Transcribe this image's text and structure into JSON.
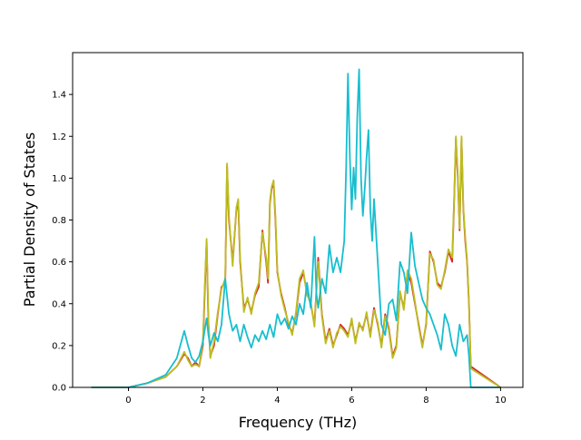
{
  "chart_data": {
    "type": "line",
    "title": "",
    "xlabel": "Frequency (THz)",
    "ylabel": "Partial Density of States",
    "xlim": [
      -1.5,
      10.6
    ],
    "ylim": [
      0.0,
      1.6
    ],
    "xticks": [
      0,
      2,
      4,
      6,
      8,
      10
    ],
    "yticks": [
      0.0,
      0.2,
      0.4,
      0.6,
      0.8,
      1.0,
      1.2,
      1.4
    ],
    "xtick_labels": [
      "0",
      "2",
      "4",
      "6",
      "8",
      "10"
    ],
    "ytick_labels": [
      "0.0",
      "0.2",
      "0.4",
      "0.6",
      "0.8",
      "1.0",
      "1.2",
      "1.4"
    ],
    "grid": false,
    "legend": "none",
    "series": [
      {
        "color": "#d62728",
        "x": [
          -1.0,
          0.0,
          0.5,
          1.0,
          1.3,
          1.5,
          1.6,
          1.7,
          1.8,
          1.9,
          2.0,
          2.05,
          2.1,
          2.15,
          2.2,
          2.3,
          2.4,
          2.5,
          2.6,
          2.65,
          2.7,
          2.8,
          2.9,
          2.95,
          3.0,
          3.1,
          3.2,
          3.3,
          3.4,
          3.5,
          3.6,
          3.7,
          3.75,
          3.8,
          3.85,
          3.9,
          3.95,
          4.0,
          4.1,
          4.2,
          4.3,
          4.4,
          4.5,
          4.6,
          4.7,
          4.8,
          4.9,
          5.0,
          5.1,
          5.2,
          5.3,
          5.4,
          5.5,
          5.6,
          5.7,
          5.8,
          5.9,
          6.0,
          6.1,
          6.2,
          6.3,
          6.4,
          6.5,
          6.6,
          6.7,
          6.8,
          6.9,
          7.0,
          7.1,
          7.2,
          7.3,
          7.4,
          7.5,
          7.6,
          7.7,
          7.8,
          7.9,
          8.0,
          8.1,
          8.2,
          8.3,
          8.4,
          8.5,
          8.6,
          8.7,
          8.75,
          8.8,
          8.85,
          8.9,
          8.95,
          9.0,
          9.05,
          9.1,
          9.15,
          9.2,
          10.0
        ],
        "y": [
          0.0,
          0.0,
          0.02,
          0.05,
          0.1,
          0.16,
          0.14,
          0.1,
          0.12,
          0.1,
          0.2,
          0.45,
          0.7,
          0.3,
          0.15,
          0.2,
          0.35,
          0.48,
          0.5,
          1.06,
          0.8,
          0.6,
          0.85,
          0.89,
          0.6,
          0.38,
          0.42,
          0.36,
          0.44,
          0.48,
          0.75,
          0.6,
          0.5,
          0.88,
          0.95,
          0.98,
          0.8,
          0.55,
          0.45,
          0.38,
          0.3,
          0.26,
          0.35,
          0.5,
          0.55,
          0.45,
          0.4,
          0.3,
          0.62,
          0.35,
          0.22,
          0.28,
          0.2,
          0.25,
          0.3,
          0.28,
          0.25,
          0.32,
          0.22,
          0.3,
          0.28,
          0.35,
          0.25,
          0.38,
          0.3,
          0.2,
          0.35,
          0.28,
          0.15,
          0.2,
          0.45,
          0.38,
          0.55,
          0.5,
          0.4,
          0.3,
          0.2,
          0.3,
          0.65,
          0.6,
          0.5,
          0.48,
          0.55,
          0.65,
          0.6,
          0.88,
          1.19,
          1.0,
          0.75,
          1.19,
          0.85,
          0.7,
          0.6,
          0.4,
          0.1,
          0.0
        ]
      },
      {
        "color": "#bcbd22",
        "x": [
          -1.0,
          0.0,
          0.5,
          1.0,
          1.3,
          1.5,
          1.6,
          1.7,
          1.8,
          1.9,
          2.0,
          2.05,
          2.1,
          2.15,
          2.2,
          2.3,
          2.4,
          2.5,
          2.6,
          2.65,
          2.7,
          2.8,
          2.9,
          2.95,
          3.0,
          3.1,
          3.2,
          3.3,
          3.4,
          3.5,
          3.6,
          3.7,
          3.75,
          3.8,
          3.85,
          3.9,
          3.95,
          4.0,
          4.1,
          4.2,
          4.3,
          4.4,
          4.5,
          4.6,
          4.7,
          4.8,
          4.9,
          5.0,
          5.1,
          5.2,
          5.3,
          5.4,
          5.5,
          5.6,
          5.7,
          5.8,
          5.9,
          6.0,
          6.1,
          6.2,
          6.3,
          6.4,
          6.5,
          6.6,
          6.7,
          6.8,
          6.9,
          7.0,
          7.1,
          7.2,
          7.3,
          7.4,
          7.5,
          7.6,
          7.7,
          7.8,
          7.9,
          8.0,
          8.1,
          8.2,
          8.3,
          8.4,
          8.5,
          8.6,
          8.7,
          8.75,
          8.8,
          8.85,
          8.9,
          8.95,
          9.0,
          9.05,
          9.1,
          9.15,
          9.2,
          10.0
        ],
        "y": [
          0.0,
          0.0,
          0.02,
          0.05,
          0.1,
          0.17,
          0.13,
          0.1,
          0.11,
          0.1,
          0.22,
          0.48,
          0.71,
          0.32,
          0.14,
          0.22,
          0.36,
          0.47,
          0.52,
          1.07,
          0.82,
          0.58,
          0.86,
          0.9,
          0.62,
          0.36,
          0.43,
          0.35,
          0.45,
          0.5,
          0.74,
          0.62,
          0.52,
          0.89,
          0.96,
          0.99,
          0.82,
          0.56,
          0.44,
          0.37,
          0.31,
          0.25,
          0.36,
          0.52,
          0.56,
          0.44,
          0.41,
          0.29,
          0.6,
          0.34,
          0.21,
          0.27,
          0.19,
          0.26,
          0.29,
          0.27,
          0.24,
          0.33,
          0.21,
          0.31,
          0.27,
          0.36,
          0.24,
          0.37,
          0.31,
          0.19,
          0.34,
          0.27,
          0.14,
          0.19,
          0.46,
          0.37,
          0.56,
          0.52,
          0.41,
          0.29,
          0.19,
          0.31,
          0.64,
          0.61,
          0.49,
          0.47,
          0.56,
          0.66,
          0.62,
          0.9,
          1.2,
          1.02,
          0.76,
          1.2,
          0.86,
          0.72,
          0.61,
          0.41,
          0.09,
          0.0
        ]
      },
      {
        "color": "#17becf",
        "x": [
          -1.0,
          0.0,
          0.5,
          1.0,
          1.3,
          1.5,
          1.6,
          1.7,
          1.8,
          1.9,
          2.0,
          2.1,
          2.15,
          2.2,
          2.3,
          2.4,
          2.5,
          2.6,
          2.7,
          2.8,
          2.9,
          3.0,
          3.1,
          3.2,
          3.3,
          3.4,
          3.5,
          3.6,
          3.7,
          3.8,
          3.9,
          4.0,
          4.1,
          4.2,
          4.3,
          4.4,
          4.5,
          4.6,
          4.7,
          4.8,
          4.9,
          5.0,
          5.05,
          5.1,
          5.2,
          5.3,
          5.4,
          5.5,
          5.6,
          5.7,
          5.8,
          5.85,
          5.9,
          5.95,
          6.0,
          6.05,
          6.1,
          6.15,
          6.2,
          6.25,
          6.3,
          6.35,
          6.4,
          6.45,
          6.5,
          6.55,
          6.6,
          6.7,
          6.8,
          6.9,
          7.0,
          7.1,
          7.2,
          7.3,
          7.4,
          7.5,
          7.6,
          7.7,
          7.8,
          7.9,
          8.0,
          8.1,
          8.2,
          8.3,
          8.4,
          8.5,
          8.6,
          8.7,
          8.8,
          8.9,
          9.0,
          9.1,
          9.15,
          9.2,
          10.0
        ],
        "y": [
          0.0,
          0.0,
          0.02,
          0.06,
          0.14,
          0.27,
          0.2,
          0.14,
          0.12,
          0.15,
          0.22,
          0.33,
          0.25,
          0.2,
          0.26,
          0.22,
          0.3,
          0.52,
          0.35,
          0.27,
          0.3,
          0.22,
          0.3,
          0.24,
          0.19,
          0.25,
          0.22,
          0.27,
          0.23,
          0.3,
          0.24,
          0.35,
          0.3,
          0.33,
          0.28,
          0.34,
          0.3,
          0.4,
          0.35,
          0.5,
          0.38,
          0.72,
          0.45,
          0.38,
          0.52,
          0.45,
          0.68,
          0.55,
          0.62,
          0.55,
          0.7,
          1.05,
          1.5,
          1.1,
          0.85,
          1.05,
          0.9,
          1.3,
          1.52,
          1.0,
          0.82,
          0.95,
          1.1,
          1.23,
          0.85,
          0.7,
          0.9,
          0.6,
          0.3,
          0.25,
          0.4,
          0.42,
          0.32,
          0.6,
          0.55,
          0.45,
          0.74,
          0.58,
          0.5,
          0.42,
          0.38,
          0.35,
          0.3,
          0.25,
          0.18,
          0.35,
          0.3,
          0.2,
          0.15,
          0.3,
          0.22,
          0.25,
          0.15,
          0.0,
          0.0
        ]
      }
    ]
  }
}
